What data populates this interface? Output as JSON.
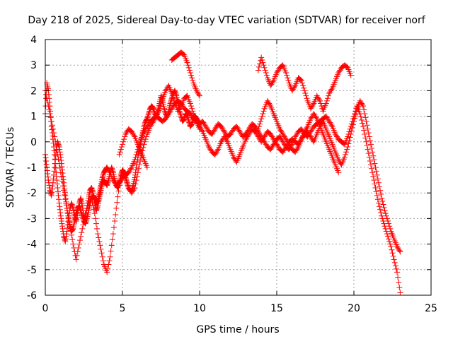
{
  "chart_data": {
    "type": "scatter",
    "title": "Day 218 of 2025, Sidereal Day-to-day VTEC variation (SDTVAR) for receiver norf",
    "xlabel": "GPS time / hours",
    "ylabel": "SDTVAR / TECUs",
    "xlim": [
      0,
      25
    ],
    "ylim": [
      -6,
      4
    ],
    "xticks": [
      0,
      5,
      10,
      15,
      20,
      25
    ],
    "yticks": [
      -6,
      -5,
      -4,
      -3,
      -2,
      -1,
      0,
      1,
      2,
      3,
      4
    ],
    "grid": true,
    "marker": "plus",
    "series": [
      {
        "name": "norf",
        "color": "#ff0000",
        "segments": [
          {
            "x": [
              0.0,
              0.1,
              0.2,
              0.3,
              0.4,
              0.5,
              0.6,
              0.7,
              0.8,
              0.9,
              1.0,
              1.1,
              1.2,
              1.3,
              1.4,
              1.5,
              1.6,
              1.7,
              1.8,
              1.9,
              2.0,
              2.1,
              2.2,
              2.3,
              2.4,
              2.5,
              2.6,
              2.7,
              2.8,
              2.9,
              3.0,
              3.1,
              3.2,
              3.3,
              3.4,
              3.5,
              3.6,
              3.7,
              3.8,
              3.9,
              4.0,
              4.1,
              4.2,
              4.3,
              4.4,
              4.5,
              4.6,
              4.7,
              4.8,
              4.9,
              5.0,
              5.1,
              5.2,
              5.3,
              5.4,
              5.5,
              5.6,
              5.7,
              5.8,
              5.9,
              6.0,
              6.1,
              6.2,
              6.3,
              6.4,
              6.5,
              6.6,
              6.7,
              6.8,
              6.9,
              7.0,
              7.1,
              7.2,
              7.3,
              7.4,
              7.5,
              7.6,
              7.7,
              7.8,
              7.9,
              8.0,
              8.1,
              8.2,
              8.3,
              8.4,
              8.5,
              8.6,
              8.7,
              8.8,
              8.9,
              9.0,
              9.1,
              9.2,
              9.3,
              9.4,
              9.5,
              9.6,
              9.7,
              9.8,
              9.9,
              10.0
            ],
            "y": [
              1.1,
              2.3,
              2.0,
              1.4,
              0.6,
              0.1,
              -0.5,
              -1.2,
              -1.8,
              -2.4,
              -2.9,
              -3.3,
              -3.7,
              -3.9,
              -3.5,
              -3.0,
              -2.6,
              -2.4,
              -2.6,
              -2.9,
              -3.1,
              -2.8,
              -2.4,
              -2.2,
              -2.5,
              -2.9,
              -3.0,
              -2.6,
              -2.2,
              -1.9,
              -1.8,
              -2.0,
              -2.4,
              -2.7,
              -2.5,
              -2.2,
              -1.9,
              -1.6,
              -1.5,
              -1.6,
              -1.7,
              -1.5,
              -1.2,
              -1.0,
              -1.2,
              -1.5,
              -1.7,
              -1.8,
              -1.6,
              -1.3,
              -1.1,
              -1.2,
              -1.4,
              -1.6,
              -1.8,
              -1.9,
              -1.9,
              -1.7,
              -1.4,
              -1.0,
              -0.6,
              -0.3,
              0.0,
              0.3,
              0.6,
              0.8,
              0.9,
              1.1,
              1.3,
              1.4,
              1.3,
              1.1,
              1.0,
              1.2,
              1.5,
              1.8,
              1.6,
              1.3,
              1.1,
              1.0,
              1.2,
              1.5,
              1.7,
              1.9,
              2.0,
              1.8,
              1.5,
              1.2,
              1.0,
              0.8,
              0.9,
              1.1,
              1.0,
              0.8,
              0.6,
              0.7,
              0.9,
              1.0,
              0.9,
              0.8,
              0.7
            ]
          },
          {
            "x": [
              10.0,
              10.2,
              10.4,
              10.6,
              10.8,
              11.0,
              11.2,
              11.4,
              11.6,
              11.8,
              12.0,
              12.2,
              12.4,
              12.6,
              12.8,
              13.0,
              13.2,
              13.4,
              13.6,
              13.8,
              14.0,
              14.2,
              14.4,
              14.6,
              14.8,
              15.0,
              15.2,
              15.4,
              15.6,
              15.8,
              16.0,
              16.2,
              16.4,
              16.6,
              16.8,
              17.0,
              17.2,
              17.4,
              17.6,
              17.8,
              18.0,
              18.2,
              18.4,
              18.6,
              18.8,
              19.0,
              19.2,
              19.4,
              19.6,
              19.8,
              20.0,
              20.2,
              20.4,
              20.6,
              20.8,
              21.0,
              21.2,
              21.4,
              21.6,
              21.8,
              22.0,
              22.2,
              22.4,
              22.6,
              22.8,
              23.0
            ],
            "y": [
              0.7,
              0.8,
              0.6,
              0.4,
              0.3,
              0.5,
              0.7,
              0.6,
              0.4,
              0.2,
              0.3,
              0.5,
              0.6,
              0.4,
              0.2,
              0.3,
              0.5,
              0.7,
              0.6,
              0.4,
              0.2,
              0.0,
              -0.2,
              -0.3,
              -0.1,
              0.1,
              0.2,
              0.0,
              -0.2,
              -0.3,
              -0.1,
              0.2,
              0.4,
              0.5,
              0.3,
              0.2,
              0.4,
              0.6,
              0.7,
              0.8,
              0.9,
              1.0,
              0.8,
              0.6,
              0.3,
              0.1,
              0.0,
              -0.1,
              0.2,
              0.6,
              1.0,
              1.4,
              1.1,
              0.6,
              0.0,
              -0.6,
              -1.2,
              -1.8,
              -2.4,
              -2.9,
              -3.3,
              -3.7,
              -4.1,
              -4.6,
              -5.1,
              -5.9
            ]
          },
          {
            "x": [
              0.0,
              0.1,
              0.2,
              0.3,
              0.4,
              0.5,
              0.6,
              0.7,
              0.8,
              0.9,
              1.0,
              1.1,
              1.2,
              1.3,
              1.4,
              1.5,
              1.6,
              1.7,
              1.8,
              1.9,
              2.0,
              2.1,
              2.2,
              2.3,
              2.4,
              2.5,
              2.6,
              2.7,
              2.8,
              2.9,
              3.0,
              3.1,
              3.2,
              3.3,
              3.4,
              3.5,
              3.6,
              3.7,
              3.8,
              3.9,
              4.0,
              4.2,
              4.4,
              4.6,
              4.8,
              5.0,
              5.2,
              5.4,
              5.6,
              5.8,
              6.0,
              6.2,
              6.4,
              6.6,
              6.8,
              7.0,
              7.2,
              7.4,
              7.6,
              7.8,
              8.0,
              8.2,
              8.4,
              8.6,
              8.8,
              9.0,
              9.2,
              9.4,
              9.6,
              9.8,
              10.0
            ],
            "y": [
              -0.5,
              -1.0,
              -1.5,
              -1.9,
              -2.1,
              -1.6,
              -1.0,
              -0.4,
              0.0,
              -0.2,
              -0.6,
              -1.1,
              -1.6,
              -2.1,
              -2.6,
              -3.0,
              -3.3,
              -3.5,
              -3.4,
              -3.1,
              -2.8,
              -2.6,
              -2.5,
              -2.7,
              -2.9,
              -3.1,
              -3.2,
              -3.0,
              -2.7,
              -2.4,
              -2.2,
              -2.1,
              -2.2,
              -2.4,
              -2.3,
              -2.0,
              -1.7,
              -1.4,
              -1.2,
              -1.1,
              -1.0,
              -1.2,
              -1.5,
              -1.7,
              -1.6,
              -1.4,
              -1.3,
              -1.2,
              -1.0,
              -0.7,
              -0.3,
              0.1,
              0.4,
              0.6,
              0.8,
              0.9,
              1.0,
              0.9,
              0.8,
              0.9,
              1.1,
              1.3,
              1.5,
              1.6,
              1.5,
              1.3,
              1.2,
              1.1,
              0.9,
              0.8,
              0.6
            ]
          },
          {
            "x": [
              10.0,
              10.2,
              10.4,
              10.6,
              10.8,
              11.0,
              11.2,
              11.4,
              11.6,
              11.8,
              12.0,
              12.2,
              12.4,
              12.6,
              12.8,
              13.0,
              13.2,
              13.4,
              13.6,
              13.8,
              14.0,
              14.2,
              14.4,
              14.6,
              14.8,
              15.0,
              15.2,
              15.4,
              15.6,
              15.8,
              16.0,
              16.2,
              16.4,
              16.6,
              16.8,
              17.0,
              17.2,
              17.4,
              17.6,
              17.8,
              18.0,
              18.2,
              18.4,
              18.6,
              18.8,
              19.0,
              19.2,
              19.4,
              19.6,
              19.8,
              20.0,
              20.2,
              20.4,
              20.6,
              20.8,
              21.0,
              21.2,
              21.4,
              21.6,
              21.8,
              22.0,
              22.2,
              22.4,
              22.6,
              22.8,
              23.0
            ],
            "y": [
              0.6,
              0.4,
              0.1,
              -0.2,
              -0.4,
              -0.5,
              -0.3,
              0.0,
              0.2,
              0.0,
              -0.3,
              -0.6,
              -0.8,
              -0.5,
              -0.2,
              0.1,
              0.3,
              0.5,
              0.4,
              0.2,
              0.0,
              0.2,
              0.4,
              0.3,
              0.1,
              -0.1,
              -0.3,
              -0.4,
              -0.2,
              0.0,
              0.1,
              0.0,
              -0.1,
              0.1,
              0.3,
              0.4,
              0.2,
              0.0,
              0.3,
              0.6,
              0.8,
              0.5,
              0.2,
              -0.1,
              -0.4,
              -0.7,
              -0.9,
              -0.6,
              -0.2,
              0.3,
              0.8,
              1.3,
              1.6,
              1.4,
              0.8,
              0.2,
              -0.4,
              -1.0,
              -1.6,
              -2.2,
              -2.7,
              -3.1,
              -3.5,
              -3.8,
              -4.1,
              -4.3
            ]
          },
          {
            "x": [
              0.0,
              0.2,
              0.4,
              0.6,
              0.8,
              1.0,
              1.2,
              1.4,
              1.6,
              1.8,
              2.0,
              2.2,
              2.4,
              2.6,
              2.8,
              3.0,
              3.2,
              3.4,
              3.6,
              3.8,
              4.0,
              4.2,
              4.4,
              4.6,
              4.8,
              5.0,
              5.2,
              5.4,
              5.6,
              5.8,
              6.0,
              6.2,
              6.4,
              6.6,
              6.8,
              7.0,
              7.2,
              7.4,
              7.6,
              7.8,
              8.0,
              8.2,
              8.4,
              8.6,
              8.8,
              9.0,
              9.2,
              9.4,
              9.6,
              9.8,
              10.0
            ],
            "y": [
              2.0,
              1.4,
              0.8,
              0.2,
              -0.5,
              -1.2,
              -1.9,
              -2.6,
              -3.3,
              -4.0,
              -4.6,
              -4.0,
              -3.4,
              -2.8,
              -2.4,
              -2.2,
              -2.8,
              -3.6,
              -4.2,
              -4.8,
              -5.1,
              -4.5,
              -3.6,
              -2.6,
              -1.7,
              -1.2,
              -1.4,
              -1.8,
              -2.0,
              -1.8,
              -1.2,
              -0.6,
              -0.1,
              0.3,
              0.6,
              0.8,
              1.0,
              1.3,
              1.7,
              2.0,
              2.2,
              1.9,
              1.5,
              1.2,
              1.4,
              1.7,
              1.8,
              1.5,
              1.1,
              0.8,
              0.5
            ]
          },
          {
            "x": [
              4.8,
              5.0,
              5.2,
              5.4,
              5.6,
              5.8,
              6.0,
              6.2,
              6.4,
              6.6
            ],
            "y": [
              -0.5,
              -0.1,
              0.3,
              0.5,
              0.4,
              0.2,
              -0.1,
              -0.4,
              -0.7,
              -1.0
            ]
          },
          {
            "x": [
              8.2,
              8.4,
              8.6,
              8.8,
              9.0,
              9.2,
              9.4,
              9.6,
              9.8,
              10.0
            ],
            "y": [
              3.2,
              3.3,
              3.4,
              3.5,
              3.4,
              3.1,
              2.7,
              2.3,
              2.0,
              1.8
            ]
          },
          {
            "x": [
              13.8,
              14.0,
              14.2,
              14.4,
              14.6,
              14.8,
              15.0,
              15.2,
              15.4,
              15.6,
              15.8,
              16.0,
              16.2,
              16.4,
              16.6,
              16.8,
              17.0,
              17.2,
              17.4,
              17.6,
              17.8,
              18.0,
              18.2,
              18.4,
              18.6,
              18.8,
              19.0,
              19.2,
              19.4,
              19.6,
              19.8
            ],
            "y": [
              2.8,
              3.3,
              2.9,
              2.5,
              2.2,
              2.4,
              2.7,
              2.9,
              3.0,
              2.7,
              2.3,
              2.0,
              2.2,
              2.5,
              2.4,
              2.0,
              1.6,
              1.3,
              1.5,
              1.8,
              1.6,
              1.2,
              1.5,
              1.9,
              2.1,
              2.4,
              2.7,
              2.9,
              3.0,
              2.9,
              2.6
            ]
          },
          {
            "x": [
              13.8,
              14.0,
              14.2,
              14.4,
              14.6,
              14.8,
              15.0,
              15.2,
              15.4,
              15.6,
              15.8,
              16.0,
              16.2,
              16.4,
              16.6,
              16.8,
              17.0,
              17.2,
              17.4,
              17.6,
              17.8,
              18.0,
              18.2,
              18.4,
              18.6,
              18.8,
              19.0
            ],
            "y": [
              0.5,
              0.9,
              1.3,
              1.6,
              1.4,
              1.1,
              0.8,
              0.5,
              0.3,
              0.1,
              -0.1,
              -0.3,
              -0.4,
              -0.2,
              0.1,
              0.4,
              0.6,
              0.9,
              1.1,
              0.9,
              0.6,
              0.3,
              0.0,
              -0.3,
              -0.6,
              -0.9,
              -1.2
            ]
          }
        ]
      }
    ]
  }
}
